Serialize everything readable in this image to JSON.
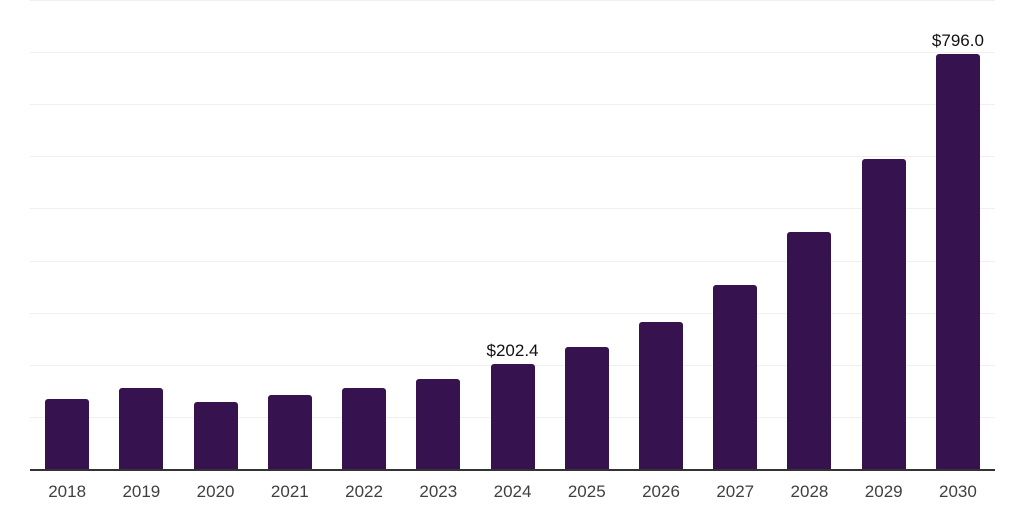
{
  "chart_data": {
    "type": "bar",
    "title": "",
    "xlabel": "",
    "ylabel": "",
    "categories": [
      "2018",
      "2019",
      "2020",
      "2021",
      "2022",
      "2023",
      "2024",
      "2025",
      "2026",
      "2027",
      "2028",
      "2029",
      "2030"
    ],
    "values": [
      134,
      156,
      128,
      142,
      155,
      172,
      202.4,
      235,
      283,
      354,
      454,
      595,
      796
    ],
    "bar_labels": [
      "",
      "",
      "",
      "",
      "",
      "",
      "$202.4",
      "",
      "",
      "",
      "",
      "",
      "$796.0"
    ],
    "ylim": [
      0,
      900
    ],
    "gridline_interval": 100,
    "grid": true,
    "legend": "none",
    "y_axis_ticks_visible": false
  },
  "style": {
    "bar_color": "#36134F",
    "axis_color": "#333333",
    "grid_color": "#f0f0f0",
    "tick_label_color": "#404040",
    "value_label_color": "#111111",
    "background_color": "#ffffff"
  }
}
